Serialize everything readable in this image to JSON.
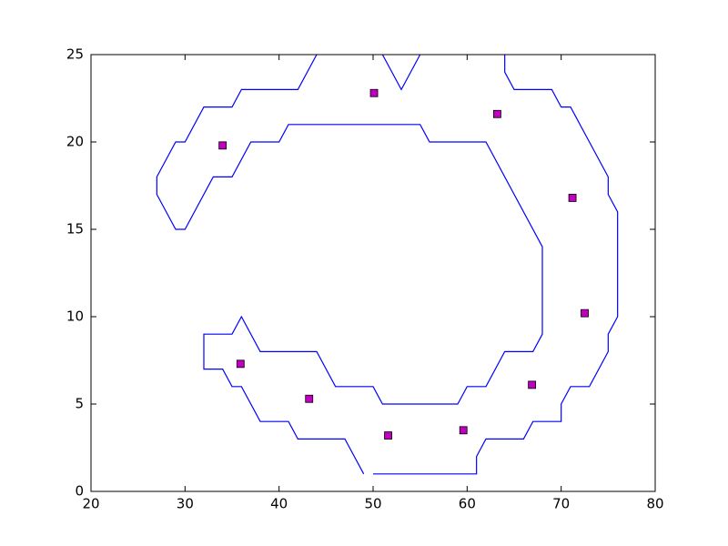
{
  "chart_data": {
    "type": "line",
    "xlim": [
      20,
      80
    ],
    "ylim": [
      0,
      25
    ],
    "xticks": [
      20,
      30,
      40,
      50,
      60,
      70,
      80
    ],
    "yticks": [
      0,
      5,
      10,
      15,
      20,
      25
    ],
    "series": [
      {
        "type": "line",
        "color": "#0000ff",
        "x": [
          50,
          61,
          61,
          62,
          66,
          67,
          70,
          70,
          71,
          73,
          75,
          75,
          76,
          76,
          75,
          75,
          71,
          70,
          69,
          65,
          64,
          64,
          null,
          55,
          53,
          51,
          null,
          44,
          42,
          36,
          35,
          32,
          30,
          29,
          27,
          27,
          29,
          30,
          33,
          35,
          37,
          40,
          41,
          55,
          56,
          62,
          68,
          68,
          67,
          64,
          62,
          60,
          59,
          51,
          50,
          46,
          44,
          38,
          36,
          35,
          32,
          32,
          34,
          35,
          36,
          38,
          41,
          42,
          47,
          49
        ],
        "values": [
          1,
          1,
          2,
          3,
          3,
          4,
          4,
          5,
          6,
          6,
          8,
          9,
          10,
          16,
          17,
          18,
          22,
          22,
          23,
          23,
          24,
          25,
          null,
          25,
          23,
          25,
          null,
          25,
          23,
          23,
          22,
          22,
          20,
          20,
          18,
          17,
          15,
          15,
          18,
          18,
          20,
          20,
          21,
          21,
          20,
          20,
          14,
          9,
          8,
          8,
          6,
          6,
          5,
          5,
          6,
          6,
          8,
          8,
          10,
          9,
          9,
          7,
          7,
          6,
          6,
          4,
          4,
          3,
          3,
          1
        ]
      },
      {
        "type": "scatter",
        "color": "#bf00bf",
        "x": [
          34.0,
          50.1,
          63.2,
          71.2,
          72.5,
          66.9,
          59.6,
          51.6,
          43.2,
          35.9
        ],
        "values": [
          19.8,
          22.8,
          21.6,
          16.8,
          10.2,
          6.1,
          3.5,
          3.2,
          5.3,
          7.3
        ]
      }
    ]
  }
}
